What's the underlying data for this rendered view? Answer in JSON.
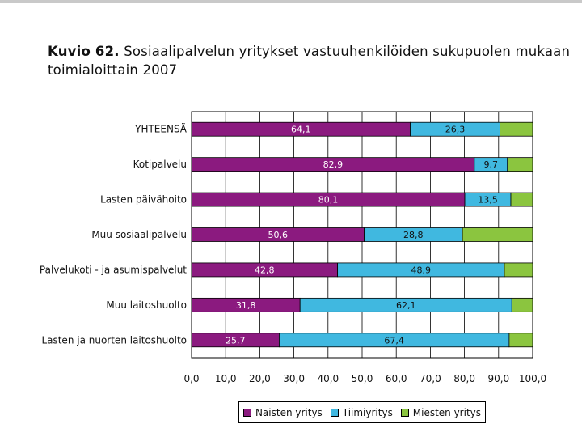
{
  "title": {
    "prefix": "Kuvio 62.",
    "text": "Sosiaalipalvelun yritykset vastuuhenkilöiden sukupuolen mukaan toimialoittain 2007"
  },
  "chart_data": {
    "type": "bar",
    "orientation": "horizontal",
    "stacked": true,
    "title": "Kuvio 62. Sosiaalipalvelun yritykset vastuuhenkilöiden sukupuolen mukaan toimialoittain 2007",
    "xlabel": "",
    "ylabel": "",
    "xlim": [
      0,
      100
    ],
    "x_ticks": [
      "0,0",
      "10,0",
      "20,0",
      "30,0",
      "40,0",
      "50,0",
      "60,0",
      "70,0",
      "80,0",
      "90,0",
      "100,0"
    ],
    "grid": true,
    "legend_position": "bottom",
    "categories": [
      "YHTEENSÄ",
      "Kotipalvelu",
      "Lasten päivähoito",
      "Muu sosiaalipalvelu",
      "Palvelukoti - ja asumispalvelut",
      "Muu laitoshuolto",
      "Lasten ja nuorten laitoshuolto"
    ],
    "series": [
      {
        "name": "Naisten yritys",
        "color": "#8b1a7f",
        "values": [
          64.1,
          82.9,
          80.1,
          50.6,
          42.8,
          31.8,
          25.7
        ],
        "labels": [
          "64,1",
          "82,9",
          "80,1",
          "50,6",
          "42,8",
          "31,8",
          "25,7"
        ]
      },
      {
        "name": "Tiimiyritys",
        "color": "#40b8e0",
        "values": [
          26.3,
          9.7,
          13.5,
          28.8,
          48.9,
          62.1,
          67.4
        ],
        "labels": [
          "26,3",
          "9,7",
          "13,5",
          "28,8",
          "48,9",
          "62,1",
          "67,4"
        ]
      },
      {
        "name": "Miesten yritys",
        "color": "#8bc53f",
        "values": [
          9.6,
          7.4,
          6.4,
          20.6,
          8.3,
          6.1,
          6.9
        ],
        "labels": [
          "",
          "",
          "",
          "",
          "",
          "",
          ""
        ]
      }
    ]
  }
}
